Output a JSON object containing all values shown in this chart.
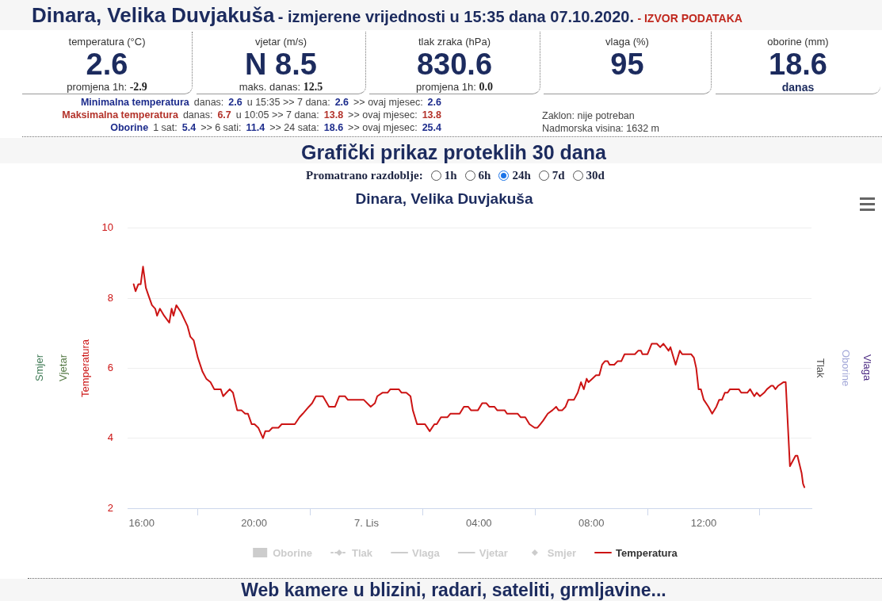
{
  "chart_data": {
    "type": "line",
    "title": "Dinara, Velika Duvjakuša",
    "ylabel": "Temperatura",
    "xlim": [
      "2020-10-06T15:30",
      "2020-10-07T15:50"
    ],
    "xticks": [
      {
        "value": "2020-10-06T16:00",
        "label": "16:00"
      },
      {
        "value": "2020-10-06T20:00",
        "label": "20:00"
      },
      {
        "value": "2020-10-07T00:00",
        "label": "7. Lis"
      },
      {
        "value": "2020-10-07T04:00",
        "label": "04:00"
      },
      {
        "value": "2020-10-07T08:00",
        "label": "08:00"
      },
      {
        "value": "2020-10-07T12:00",
        "label": "12:00"
      }
    ],
    "ylim": [
      2,
      10
    ],
    "yticks": [
      2,
      4,
      6,
      8,
      10
    ],
    "grid": "y",
    "legend": "bottom",
    "marker": "none",
    "x": [
      "2020-10-06T15:43",
      "2020-10-06T15:47",
      "2020-10-06T15:53",
      "2020-10-06T15:58",
      "2020-10-06T16:03",
      "2020-10-06T16:09",
      "2020-10-06T16:14",
      "2020-10-06T16:22",
      "2020-10-06T16:29",
      "2020-10-06T16:33",
      "2020-10-06T16:39",
      "2020-10-06T16:48",
      "2020-10-06T16:59",
      "2020-10-06T17:04",
      "2020-10-06T17:08",
      "2020-10-06T17:14",
      "2020-10-06T17:24",
      "2020-10-06T17:31",
      "2020-10-06T17:38",
      "2020-10-06T17:44",
      "2020-10-06T17:51",
      "2020-10-06T18:00",
      "2020-10-06T18:10",
      "2020-10-06T18:18",
      "2020-10-06T18:27",
      "2020-10-06T18:35",
      "2020-10-06T18:49",
      "2020-10-06T18:54",
      "2020-10-06T19:01",
      "2020-10-06T19:08",
      "2020-10-06T19:15",
      "2020-10-06T19:24",
      "2020-10-06T19:33",
      "2020-10-06T19:41",
      "2020-10-06T19:47",
      "2020-10-06T19:55",
      "2020-10-06T20:01",
      "2020-10-06T20:09",
      "2020-10-06T20:19",
      "2020-10-06T20:24",
      "2020-10-06T20:32",
      "2020-10-06T20:39",
      "2020-10-06T20:52",
      "2020-10-06T20:59",
      "2020-10-06T21:27",
      "2020-10-06T21:37",
      "2020-10-06T21:44",
      "2020-10-06T21:57",
      "2020-10-06T22:04",
      "2020-10-06T22:12",
      "2020-10-06T22:27",
      "2020-10-06T22:40",
      "2020-10-06T22:53",
      "2020-10-06T23:02",
      "2020-10-06T23:14",
      "2020-10-06T23:20",
      "2020-10-06T23:54",
      "2020-10-07T00:09",
      "2020-10-07T00:18",
      "2020-10-07T00:23",
      "2020-10-07T00:34",
      "2020-10-07T00:45",
      "2020-10-07T00:51",
      "2020-10-07T01:09",
      "2020-10-07T01:15",
      "2020-10-07T01:25",
      "2020-10-07T01:34",
      "2020-10-07T01:39",
      "2020-10-07T01:48",
      "2020-10-07T02:05",
      "2020-10-07T02:15",
      "2020-10-07T02:25",
      "2020-10-07T02:30",
      "2020-10-07T02:39",
      "2020-10-07T02:53",
      "2020-10-07T02:59",
      "2020-10-07T03:19",
      "2020-10-07T03:28",
      "2020-10-07T03:37",
      "2020-10-07T03:43",
      "2020-10-07T03:58",
      "2020-10-07T04:07",
      "2020-10-07T04:16",
      "2020-10-07T04:22",
      "2020-10-07T04:33",
      "2020-10-07T04:39",
      "2020-10-07T04:55",
      "2020-10-07T05:00",
      "2020-10-07T05:23",
      "2020-10-07T05:29",
      "2020-10-07T05:39",
      "2020-10-07T05:48",
      "2020-10-07T05:59",
      "2020-10-07T06:05",
      "2020-10-07T06:11",
      "2020-10-07T06:17",
      "2020-10-07T06:27",
      "2020-10-07T06:37",
      "2020-10-07T06:45",
      "2020-10-07T06:50",
      "2020-10-07T06:58",
      "2020-10-07T07:05",
      "2020-10-07T07:11",
      "2020-10-07T07:23",
      "2020-10-07T07:31",
      "2020-10-07T07:38",
      "2020-10-07T07:44",
      "2020-10-07T07:50",
      "2020-10-07T07:54",
      "2020-10-07T08:02",
      "2020-10-07T08:10",
      "2020-10-07T08:17",
      "2020-10-07T08:23",
      "2020-10-07T08:29",
      "2020-10-07T08:35",
      "2020-10-07T08:39",
      "2020-10-07T08:49",
      "2020-10-07T08:56",
      "2020-10-07T09:04",
      "2020-10-07T09:11",
      "2020-10-07T09:33",
      "2020-10-07T09:40",
      "2020-10-07T09:46",
      "2020-10-07T09:49",
      "2020-10-07T10:00",
      "2020-10-07T10:09",
      "2020-10-07T10:20",
      "2020-10-07T10:27",
      "2020-10-07T10:34",
      "2020-10-07T10:45",
      "2020-10-07T10:49",
      "2020-10-07T11:00",
      "2020-10-07T11:09",
      "2020-10-07T11:14",
      "2020-10-07T11:33",
      "2020-10-07T11:39",
      "2020-10-07T11:44",
      "2020-10-07T11:49",
      "2020-10-07T11:54",
      "2020-10-07T12:00",
      "2020-10-07T12:10",
      "2020-10-07T12:18",
      "2020-10-07T12:27",
      "2020-10-07T12:33",
      "2020-10-07T12:39",
      "2020-10-07T12:45",
      "2020-10-07T12:51",
      "2020-10-07T12:56",
      "2020-10-07T13:15",
      "2020-10-07T13:20",
      "2020-10-07T13:33",
      "2020-10-07T13:39",
      "2020-10-07T13:48",
      "2020-10-07T13:53",
      "2020-10-07T14:00",
      "2020-10-07T14:09",
      "2020-10-07T14:15",
      "2020-10-07T14:24",
      "2020-10-07T14:28",
      "2020-10-07T14:33",
      "2020-10-07T14:39",
      "2020-10-07T14:50",
      "2020-10-07T14:55",
      "2020-10-07T15:04",
      "2020-10-07T15:16",
      "2020-10-07T15:20",
      "2020-10-07T15:29",
      "2020-10-07T15:32",
      "2020-10-07T15:35"
    ],
    "series": [
      {
        "name": "Oborine",
        "type": "bar",
        "color": "#cccccc",
        "values": [
          null,
          null,
          null,
          null,
          null,
          null,
          null,
          null,
          null,
          null,
          null,
          null,
          null,
          null,
          null,
          null,
          null,
          null,
          null,
          null,
          null,
          null,
          null,
          null,
          null,
          null,
          null,
          null,
          null,
          null,
          null,
          null,
          null,
          null,
          null,
          null,
          null,
          null,
          null,
          null,
          null,
          null,
          null,
          null,
          null,
          null,
          null,
          null,
          null,
          null,
          null,
          null,
          null,
          null,
          null,
          null,
          null,
          null,
          null,
          null,
          null,
          null,
          null,
          null,
          null,
          null,
          null,
          null,
          null,
          null,
          null,
          null,
          null,
          null,
          null,
          null,
          null,
          null,
          null,
          null,
          null,
          null,
          null,
          null,
          null,
          null,
          null,
          null,
          null,
          null,
          null,
          null,
          null,
          null,
          null,
          null,
          null,
          null,
          null,
          null,
          null,
          null,
          null,
          null,
          null,
          null,
          null,
          null,
          null,
          null,
          null,
          null,
          null,
          null,
          null,
          null,
          null,
          null,
          null,
          null,
          null,
          null,
          null,
          null,
          null,
          null,
          null,
          null,
          null,
          null,
          null,
          null,
          null,
          null,
          null,
          null,
          null,
          null,
          null,
          null,
          null,
          null,
          null,
          null,
          null,
          null,
          null,
          null,
          null,
          null,
          null,
          null,
          null,
          null,
          null,
          null,
          null,
          null,
          null,
          null,
          null,
          null,
          null,
          null,
          null,
          null,
          null,
          null,
          null
        ]
      },
      {
        "name": "Tlak",
        "type": "line",
        "color": "#cccccc",
        "marker": "diamond",
        "line_style": "dotted",
        "values": [
          null,
          null,
          null,
          null,
          null,
          null,
          null,
          null,
          null,
          null,
          null,
          null,
          null,
          null,
          null,
          null,
          null,
          null,
          null,
          null,
          null,
          null,
          null,
          null,
          null,
          null,
          null,
          null,
          null,
          null,
          null,
          null,
          null,
          null,
          null,
          null,
          null,
          null,
          null,
          null,
          null,
          null,
          null,
          null,
          null,
          null,
          null,
          null,
          null,
          null,
          null,
          null,
          null,
          null,
          null,
          null,
          null,
          null,
          null,
          null,
          null,
          null,
          null,
          null,
          null,
          null,
          null,
          null,
          null,
          null,
          null,
          null,
          null,
          null,
          null,
          null,
          null,
          null,
          null,
          null,
          null,
          null,
          null,
          null,
          null,
          null,
          null,
          null,
          null,
          null,
          null,
          null,
          null,
          null,
          null,
          null,
          null,
          null,
          null,
          null,
          null,
          null,
          null,
          null,
          null,
          null,
          null,
          null,
          null,
          null,
          null,
          null,
          null,
          null,
          null,
          null,
          null,
          null,
          null,
          null,
          null,
          null,
          null,
          null,
          null,
          null,
          null,
          null,
          null,
          null,
          null,
          null,
          null,
          null,
          null,
          null,
          null,
          null,
          null,
          null,
          null,
          null,
          null,
          null,
          null,
          null,
          null,
          null,
          null,
          null,
          null,
          null,
          null,
          null,
          null,
          null,
          null,
          null,
          null,
          null,
          null,
          null,
          null,
          null,
          null,
          null,
          null,
          null,
          null
        ]
      },
      {
        "name": "Vlaga",
        "type": "line",
        "color": "#cccccc",
        "values": [
          null,
          null,
          null,
          null,
          null,
          null,
          null,
          null,
          null,
          null,
          null,
          null,
          null,
          null,
          null,
          null,
          null,
          null,
          null,
          null,
          null,
          null,
          null,
          null,
          null,
          null,
          null,
          null,
          null,
          null,
          null,
          null,
          null,
          null,
          null,
          null,
          null,
          null,
          null,
          null,
          null,
          null,
          null,
          null,
          null,
          null,
          null,
          null,
          null,
          null,
          null,
          null,
          null,
          null,
          null,
          null,
          null,
          null,
          null,
          null,
          null,
          null,
          null,
          null,
          null,
          null,
          null,
          null,
          null,
          null,
          null,
          null,
          null,
          null,
          null,
          null,
          null,
          null,
          null,
          null,
          null,
          null,
          null,
          null,
          null,
          null,
          null,
          null,
          null,
          null,
          null,
          null,
          null,
          null,
          null,
          null,
          null,
          null,
          null,
          null,
          null,
          null,
          null,
          null,
          null,
          null,
          null,
          null,
          null,
          null,
          null,
          null,
          null,
          null,
          null,
          null,
          null,
          null,
          null,
          null,
          null,
          null,
          null,
          null,
          null,
          null,
          null,
          null,
          null,
          null,
          null,
          null,
          null,
          null,
          null,
          null,
          null,
          null,
          null,
          null,
          null,
          null,
          null,
          null,
          null,
          null,
          null,
          null,
          null,
          null,
          null,
          null,
          null,
          null,
          null,
          null,
          null,
          null,
          null,
          null,
          null,
          null,
          null,
          null,
          null,
          null,
          null,
          null,
          null
        ]
      },
      {
        "name": "Vjetar",
        "type": "line",
        "color": "#cccccc",
        "values": [
          null,
          null,
          null,
          null,
          null,
          null,
          null,
          null,
          null,
          null,
          null,
          null,
          null,
          null,
          null,
          null,
          null,
          null,
          null,
          null,
          null,
          null,
          null,
          null,
          null,
          null,
          null,
          null,
          null,
          null,
          null,
          null,
          null,
          null,
          null,
          null,
          null,
          null,
          null,
          null,
          null,
          null,
          null,
          null,
          null,
          null,
          null,
          null,
          null,
          null,
          null,
          null,
          null,
          null,
          null,
          null,
          null,
          null,
          null,
          null,
          null,
          null,
          null,
          null,
          null,
          null,
          null,
          null,
          null,
          null,
          null,
          null,
          null,
          null,
          null,
          null,
          null,
          null,
          null,
          null,
          null,
          null,
          null,
          null,
          null,
          null,
          null,
          null,
          null,
          null,
          null,
          null,
          null,
          null,
          null,
          null,
          null,
          null,
          null,
          null,
          null,
          null,
          null,
          null,
          null,
          null,
          null,
          null,
          null,
          null,
          null,
          null,
          null,
          null,
          null,
          null,
          null,
          null,
          null,
          null,
          null,
          null,
          null,
          null,
          null,
          null,
          null,
          null,
          null,
          null,
          null,
          null,
          null,
          null,
          null,
          null,
          null,
          null,
          null,
          null,
          null,
          null,
          null,
          null,
          null,
          null,
          null,
          null,
          null,
          null,
          null,
          null,
          null,
          null,
          null,
          null,
          null,
          null,
          null,
          null,
          null,
          null,
          null,
          null,
          null,
          null,
          null,
          null,
          null
        ]
      },
      {
        "name": "Smjer",
        "type": "scatter",
        "color": "#cccccc",
        "marker": "diamond",
        "values": [
          null,
          null,
          null,
          null,
          null,
          null,
          null,
          null,
          null,
          null,
          null,
          null,
          null,
          null,
          null,
          null,
          null,
          null,
          null,
          null,
          null,
          null,
          null,
          null,
          null,
          null,
          null,
          null,
          null,
          null,
          null,
          null,
          null,
          null,
          null,
          null,
          null,
          null,
          null,
          null,
          null,
          null,
          null,
          null,
          null,
          null,
          null,
          null,
          null,
          null,
          null,
          null,
          null,
          null,
          null,
          null,
          null,
          null,
          null,
          null,
          null,
          null,
          null,
          null,
          null,
          null,
          null,
          null,
          null,
          null,
          null,
          null,
          null,
          null,
          null,
          null,
          null,
          null,
          null,
          null,
          null,
          null,
          null,
          null,
          null,
          null,
          null,
          null,
          null,
          null,
          null,
          null,
          null,
          null,
          null,
          null,
          null,
          null,
          null,
          null,
          null,
          null,
          null,
          null,
          null,
          null,
          null,
          null,
          null,
          null,
          null,
          null,
          null,
          null,
          null,
          null,
          null,
          null,
          null,
          null,
          null,
          null,
          null,
          null,
          null,
          null,
          null,
          null,
          null,
          null,
          null,
          null,
          null,
          null,
          null,
          null,
          null,
          null,
          null,
          null,
          null,
          null,
          null,
          null,
          null,
          null,
          null,
          null,
          null,
          null,
          null,
          null,
          null,
          null,
          null,
          null,
          null,
          null,
          null,
          null,
          null,
          null,
          null,
          null,
          null,
          null,
          null,
          null,
          null
        ]
      },
      {
        "name": "Temperatura",
        "color": "#cc1414",
        "values": [
          8.4,
          8.2,
          8.4,
          8.4,
          8.9,
          8.3,
          8.1,
          7.8,
          7.7,
          7.5,
          7.7,
          7.5,
          7.3,
          7.7,
          7.5,
          7.8,
          7.6,
          7.4,
          7.2,
          6.9,
          6.8,
          6.3,
          5.9,
          5.7,
          5.6,
          5.4,
          5.4,
          5.2,
          5.3,
          5.4,
          5.3,
          4.8,
          4.8,
          4.7,
          4.7,
          4.4,
          4.4,
          4.3,
          4.0,
          4.2,
          4.2,
          4.3,
          4.3,
          4.4,
          4.4,
          4.6,
          4.7,
          4.9,
          5.0,
          5.2,
          5.2,
          4.9,
          4.9,
          5.2,
          5.2,
          5.1,
          5.1,
          4.9,
          5.0,
          5.2,
          5.3,
          5.3,
          5.4,
          5.4,
          5.3,
          5.3,
          5.2,
          4.8,
          4.4,
          4.4,
          4.2,
          4.4,
          4.4,
          4.6,
          4.6,
          4.7,
          4.7,
          4.9,
          4.9,
          4.8,
          4.8,
          5.0,
          5.0,
          4.9,
          4.9,
          4.8,
          4.8,
          4.7,
          4.7,
          4.6,
          4.6,
          4.4,
          4.3,
          4.3,
          4.4,
          4.5,
          4.7,
          4.8,
          4.9,
          4.8,
          4.8,
          4.9,
          5.1,
          5.1,
          5.3,
          5.6,
          5.4,
          5.7,
          5.6,
          5.7,
          5.8,
          5.8,
          6.1,
          6.2,
          6.2,
          6.1,
          6.1,
          6.2,
          6.2,
          6.4,
          6.4,
          6.5,
          6.5,
          6.4,
          6.4,
          6.7,
          6.7,
          6.6,
          6.7,
          6.5,
          6.6,
          6.1,
          6.5,
          6.4,
          6.4,
          6.3,
          6.0,
          5.4,
          5.4,
          5.1,
          4.9,
          4.7,
          4.9,
          5.1,
          5.1,
          5.3,
          5.3,
          5.4,
          5.4,
          5.3,
          5.3,
          5.4,
          5.2,
          5.3,
          5.2,
          5.3,
          5.4,
          5.5,
          5.5,
          5.4,
          5.5,
          5.6,
          5.6,
          3.2,
          3.5,
          3.5,
          3.0,
          2.7,
          2.6
        ]
      }
    ],
    "annotations": [
      "Dinara, Velika Duvjakuša",
      "- izmjerene vrijednosti u 15:35 dana 07.10.2020.",
      "- IZVOR PODATAKA",
      "temperatura (°C)",
      "2.6",
      "promjena 1h:",
      "-2.9",
      "vjetar (m/s)",
      "N 8.5",
      "maks. danas:",
      "12.5",
      "tlak zraka (hPa)",
      "830.6",
      "promjena 1h:",
      "0.0",
      "vlaga (%)",
      "95",
      "oborine (mm)",
      "18.6",
      "danas",
      "Minimalna temperatura",
      "danas:",
      "2.6",
      "u 15:35 >> 7 dana:",
      "2.6",
      ">> ovaj mjesec:",
      "2.6",
      "Maksimalna temperatura",
      "danas:",
      "6.7",
      "u 10:05 >> 7 dana:",
      "13.8",
      ">> ovaj mjesec:",
      "13.8",
      "Oborine",
      "1 sat:",
      "5.4",
      ">> 6 sati:",
      "11.4",
      ">> 24 sata:",
      "18.6",
      ">> ovaj mjesec:",
      "25.4",
      "Zaklon: nije potreban",
      "Nadmorska visina: 1632 m",
      "Grafički prikaz proteklih 30 dana",
      "Promatrano razdoblje:",
      "1h",
      "6h",
      "24h",
      "7d",
      "30d",
      "Web kamere u blizini, radari, sateliti, grmljavine...",
      "Smjer",
      "Vjetar",
      "Tlak",
      "Oborine",
      "Vlaga"
    ]
  }
}
